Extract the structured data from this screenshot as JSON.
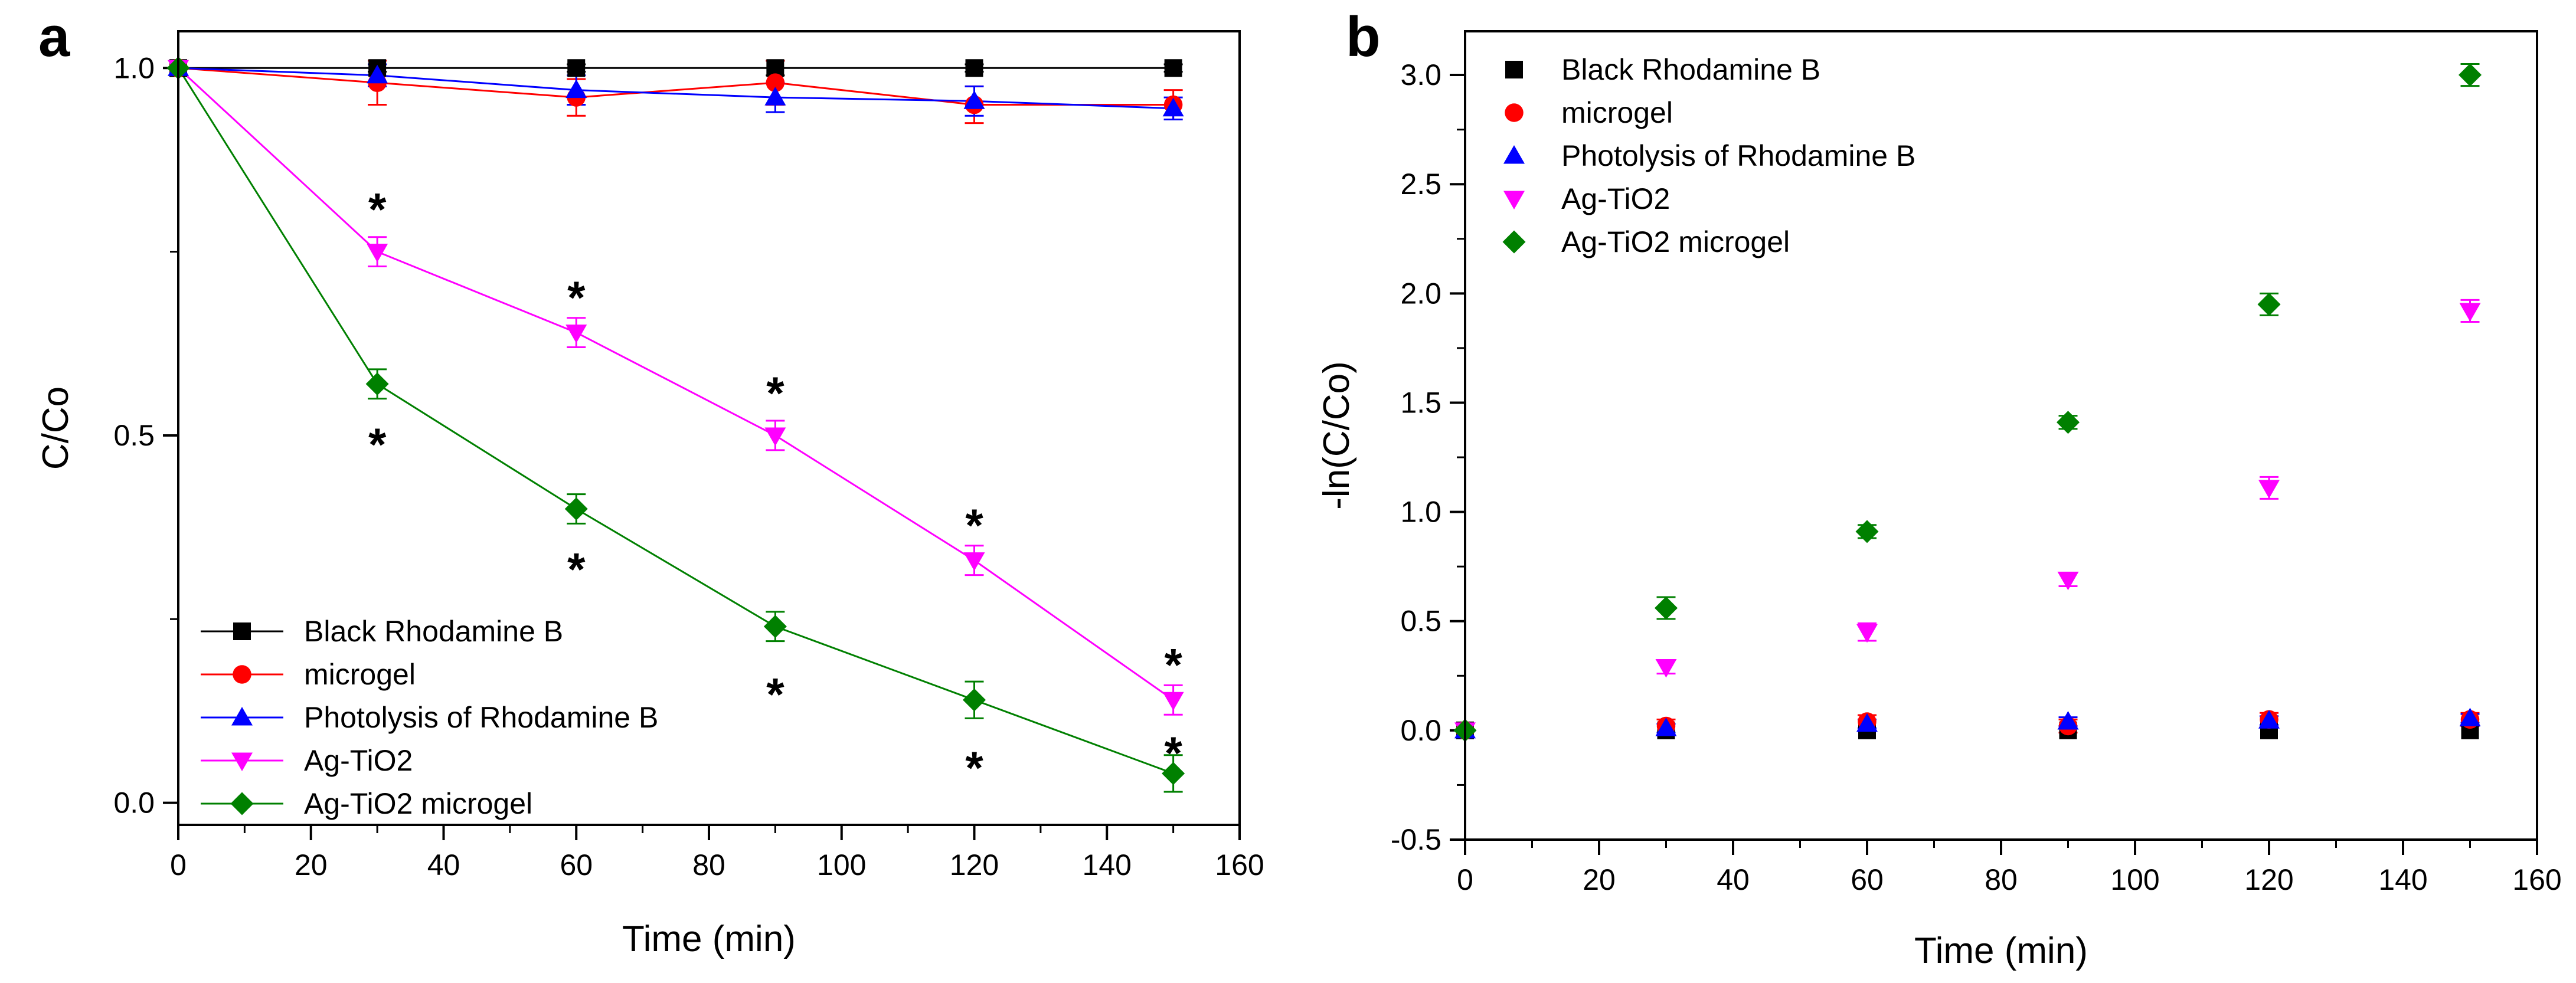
{
  "colors": {
    "Black Rhodamine B": "#000000",
    "microgel": "#ff0000",
    "Photolysis of Rhodamine B": "#0000ff",
    "Ag-TiO2": "#ff00ff",
    "Ag-TiO2 microgel": "#008000"
  },
  "chart_data": [
    {
      "panel": "a",
      "type": "line",
      "xlabel": "Time (min)",
      "ylabel": "C/Co",
      "xlim": [
        0,
        160
      ],
      "ylim": [
        -0.03,
        1.05
      ],
      "xticks": [
        "0",
        "20",
        "40",
        "60",
        "80",
        "100",
        "120",
        "140",
        "160"
      ],
      "yticks": [
        "0.0",
        "0.5",
        "1.0"
      ],
      "x": [
        0,
        30,
        60,
        90,
        120,
        150
      ],
      "series": [
        {
          "name": "Black Rhodamine B",
          "marker": "square",
          "values": [
            1.0,
            1.0,
            1.0,
            1.0,
            1.0,
            1.0
          ],
          "errors": [
            0.0,
            0.005,
            0.005,
            0.01,
            0.005,
            0.005
          ]
        },
        {
          "name": "microgel",
          "marker": "circle",
          "values": [
            1.0,
            0.98,
            0.96,
            0.98,
            0.95,
            0.95
          ],
          "errors": [
            0.0,
            0.03,
            0.025,
            0.03,
            0.025,
            0.02
          ]
        },
        {
          "name": "Photolysis of Rhodamine B",
          "marker": "triangle-up",
          "values": [
            1.0,
            0.99,
            0.97,
            0.96,
            0.955,
            0.945
          ],
          "errors": [
            0.0,
            0.015,
            0.02,
            0.02,
            0.02,
            0.015
          ]
        },
        {
          "name": "Ag-TiO2",
          "marker": "triangle-down",
          "values": [
            1.0,
            0.75,
            0.64,
            0.5,
            0.33,
            0.14
          ],
          "errors": [
            0.0,
            0.02,
            0.02,
            0.02,
            0.02,
            0.02
          ]
        },
        {
          "name": "Ag-TiO2 microgel",
          "marker": "diamond",
          "values": [
            1.0,
            0.57,
            0.4,
            0.24,
            0.14,
            0.04
          ],
          "errors": [
            0.0,
            0.02,
            0.02,
            0.02,
            0.025,
            0.025
          ]
        }
      ],
      "annotations": [
        {
          "text": "*",
          "x": 30,
          "y": 0.82
        },
        {
          "text": "*",
          "x": 30,
          "y": 0.5
        },
        {
          "text": "*",
          "x": 60,
          "y": 0.7
        },
        {
          "text": "*",
          "x": 60,
          "y": 0.33
        },
        {
          "text": "*",
          "x": 90,
          "y": 0.57
        },
        {
          "text": "*",
          "x": 90,
          "y": 0.16
        },
        {
          "text": "*",
          "x": 120,
          "y": 0.39
        },
        {
          "text": "*",
          "x": 120,
          "y": 0.06
        },
        {
          "text": "*",
          "x": 150,
          "y": 0.2
        },
        {
          "text": "*",
          "x": 150,
          "y": 0.08
        }
      ],
      "legend": "bottom-left"
    },
    {
      "panel": "b",
      "type": "scatter",
      "xlabel": "Time (min)",
      "ylabel": "-ln(C/Co)",
      "xlim": [
        0,
        160
      ],
      "ylim": [
        -0.5,
        3.2
      ],
      "xticks": [
        "0",
        "20",
        "40",
        "60",
        "80",
        "100",
        "120",
        "140",
        "160"
      ],
      "yticks": [
        "-0.5",
        "0.0",
        "0.5",
        "1.0",
        "1.5",
        "2.0",
        "2.5",
        "3.0"
      ],
      "x": [
        0,
        30,
        60,
        90,
        120,
        150
      ],
      "series": [
        {
          "name": "Black Rhodamine B",
          "marker": "square",
          "values": [
            0.0,
            0.0,
            0.0,
            0.0,
            0.0,
            0.0
          ],
          "errors": [
            0,
            0,
            0,
            0,
            0,
            0
          ]
        },
        {
          "name": "microgel",
          "marker": "circle",
          "values": [
            0.0,
            0.02,
            0.04,
            0.02,
            0.05,
            0.05
          ],
          "errors": [
            0,
            0.03,
            0.03,
            0.03,
            0.03,
            0.03
          ]
        },
        {
          "name": "Photolysis of Rhodamine B",
          "marker": "triangle-up",
          "values": [
            0.0,
            0.01,
            0.03,
            0.04,
            0.045,
            0.055
          ],
          "errors": [
            0,
            0.02,
            0.02,
            0.02,
            0.02,
            0.02
          ]
        },
        {
          "name": "Ag-TiO2",
          "marker": "triangle-down",
          "values": [
            0.0,
            0.29,
            0.45,
            0.69,
            1.11,
            1.92
          ],
          "errors": [
            0,
            0.03,
            0.04,
            0.03,
            0.05,
            0.05
          ]
        },
        {
          "name": "Ag-TiO2 microgel",
          "marker": "diamond",
          "values": [
            0.0,
            0.56,
            0.91,
            1.41,
            1.95,
            3.0
          ],
          "errors": [
            0,
            0.05,
            0.03,
            0.03,
            0.05,
            0.05
          ]
        }
      ],
      "legend": "top-left"
    }
  ]
}
